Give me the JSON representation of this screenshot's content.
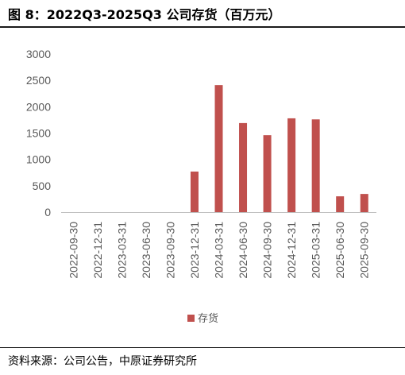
{
  "title": "图 8：2022Q3-2025Q3 公司存货（百万元）",
  "source": "资料来源：公司公告，中原证券研究所",
  "chart_data": {
    "type": "bar",
    "categories": [
      "2022-09-30",
      "2022-12-31",
      "2023-03-31",
      "2023-06-30",
      "2023-09-30",
      "2023-12-31",
      "2024-03-31",
      "2024-06-30",
      "2024-09-30",
      "2024-12-31",
      "2025-03-31",
      "2025-06-30",
      "2025-09-30"
    ],
    "series": [
      {
        "name": "存货",
        "color": "#c0504d",
        "values": [
          0,
          0,
          0,
          0,
          0,
          770,
          2410,
          1690,
          1460,
          1780,
          1760,
          300,
          345
        ]
      }
    ],
    "yticks": [
      0,
      500,
      1000,
      1500,
      2000,
      2500,
      3000
    ],
    "ylim": [
      0,
      3000
    ],
    "grid": false,
    "legend": "bottom"
  }
}
